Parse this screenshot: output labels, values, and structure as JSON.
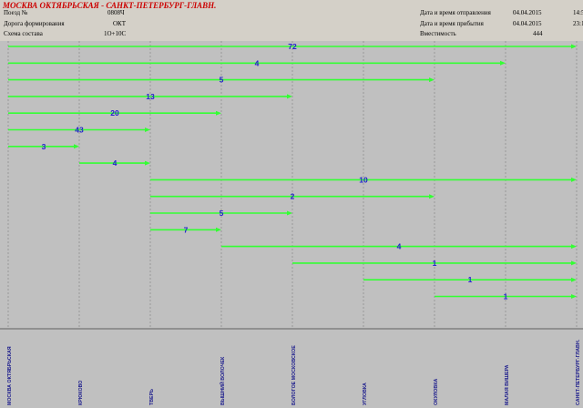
{
  "header": {
    "title": "МОСКВА ОКТЯБРЬСКАЯ - САНКТ-ПЕТЕРБУРГ-ГЛАВН.",
    "train_label": "Поезд №",
    "train_value": "0808Ч",
    "road_label": "Дорога формирования",
    "road_value": "ОКТ",
    "scheme_label": "Схема состава",
    "scheme_value": "1О+10С",
    "departure_label": "Дата и время отправления",
    "departure_date": "04.04.2015",
    "departure_time": "14:5",
    "arrival_label": "Дата и время прибытия",
    "arrival_date": "04.04.2015",
    "arrival_time": "23:1",
    "capacity_label": "Вместимость",
    "capacity_value": "444"
  },
  "colors": {
    "header_bg": "#d4d0c8",
    "title": "#cc0000",
    "plot_bg": "#c0c0c0",
    "segment": "#33ff33",
    "count_label": "#2222cc",
    "grid": "#808080"
  },
  "chart_data": {
    "type": "bar",
    "stations": [
      "МОСКВА ОКТЯБРЬСКАЯ",
      "КРЮКОВО",
      "ТВЕРЬ",
      "ВЫШНИЙ ВОЛОЧЕК",
      "БОЛОГОЕ МОСКОВСКОЕ",
      "УГЛОВКА",
      "ОКУЛОВКА",
      "МАЛАЯ ВИШЕРА",
      "САНКТ-ПЕТЕРБУРГ-ГЛАВН."
    ],
    "segments": [
      {
        "from": 0,
        "to": 8,
        "value": 72
      },
      {
        "from": 0,
        "to": 7,
        "value": 4
      },
      {
        "from": 0,
        "to": 6,
        "value": 5
      },
      {
        "from": 0,
        "to": 4,
        "value": 13
      },
      {
        "from": 0,
        "to": 3,
        "value": 20
      },
      {
        "from": 0,
        "to": 2,
        "value": 43
      },
      {
        "from": 0,
        "to": 1,
        "value": 3
      },
      {
        "from": 1,
        "to": 2,
        "value": 4
      },
      {
        "from": 2,
        "to": 8,
        "value": 10
      },
      {
        "from": 2,
        "to": 6,
        "value": 2
      },
      {
        "from": 2,
        "to": 4,
        "value": 5
      },
      {
        "from": 2,
        "to": 3,
        "value": 7
      },
      {
        "from": 3,
        "to": 8,
        "value": 4
      },
      {
        "from": 4,
        "to": 8,
        "value": 1
      },
      {
        "from": 5,
        "to": 8,
        "value": 1
      },
      {
        "from": 6,
        "to": 8,
        "value": 1
      }
    ]
  }
}
